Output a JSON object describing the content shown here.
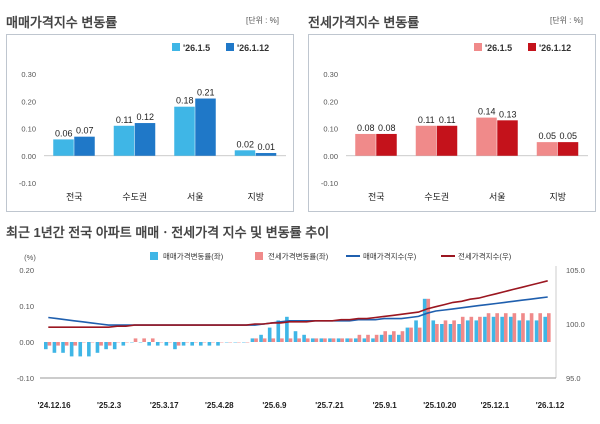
{
  "sale_panel": {
    "title": "매매가격지수 변동률",
    "unit": "[단위 : %]"
  },
  "jeonse_panel": {
    "title": "전세가격지수 변동률",
    "unit": "[단위 : %]"
  },
  "trend_title": "최근 1년간 전국 아파트 매매ㆍ전세가격 지수 및 변동률 추이",
  "colors": {
    "sale_week1": "#3fb6e6",
    "sale_week2": "#1f78c8",
    "jeonse_week1": "#f08a8a",
    "jeonse_week2": "#c4121b",
    "sale_index_line": "#1f5fae",
    "jeonse_index_line": "#9b1620"
  },
  "chart_data": [
    {
      "type": "bar",
      "categories": [
        "전국",
        "수도권",
        "서울",
        "지방"
      ],
      "series": [
        {
          "name": "'26.1.5",
          "values": [
            0.06,
            0.11,
            0.18,
            0.02
          ]
        },
        {
          "name": "'26.1.12",
          "values": [
            0.07,
            0.12,
            0.21,
            0.01
          ]
        }
      ],
      "ylim": [
        -0.1,
        0.3
      ],
      "yticks": [
        "0.30",
        "0.20",
        "0.10",
        "0.00",
        "-0.10"
      ],
      "legend": "top-right",
      "grid": false
    },
    {
      "type": "bar",
      "categories": [
        "전국",
        "수도권",
        "서울",
        "지방"
      ],
      "series": [
        {
          "name": "'26.1.5",
          "values": [
            0.08,
            0.11,
            0.14,
            0.05
          ]
        },
        {
          "name": "'26.1.12",
          "values": [
            0.08,
            0.11,
            0.13,
            0.05
          ]
        }
      ],
      "ylim": [
        -0.1,
        0.3
      ],
      "yticks": [
        "0.30",
        "0.20",
        "0.10",
        "0.00",
        "-0.10"
      ],
      "legend": "top-right",
      "grid": false
    },
    {
      "type": "bar",
      "x_ticks": [
        "'24.12.16",
        "'25.2.3",
        "'25.3.17",
        "'25.4.28",
        "'25.6.9",
        "'25.7.21",
        "'25.9.1",
        "'25.10.20",
        "'25.12.1",
        "'26.1.12"
      ],
      "left_axis_label": "(%)",
      "ylim": [
        -0.1,
        0.2
      ],
      "yticks": [
        "0.20",
        "0.10",
        "0.00",
        "-0.10"
      ],
      "y2lim": [
        95.0,
        105.0
      ],
      "y2ticks": [
        "105.0",
        "100.0",
        "95.0"
      ],
      "legend": "top-center",
      "series": [
        {
          "name": "매매가격변동률(좌)",
          "kind": "bar",
          "values": [
            -0.02,
            -0.03,
            -0.03,
            -0.04,
            -0.04,
            -0.04,
            -0.03,
            -0.02,
            -0.02,
            -0.01,
            0.0,
            0.0,
            -0.01,
            -0.01,
            -0.01,
            -0.02,
            -0.01,
            -0.01,
            -0.01,
            -0.01,
            -0.01,
            0.0,
            0.0,
            0.0,
            0.01,
            0.02,
            0.04,
            0.06,
            0.07,
            0.03,
            0.02,
            0.01,
            0.01,
            0.01,
            0.01,
            0.01,
            0.01,
            0.01,
            0.01,
            0.02,
            0.02,
            0.02,
            0.04,
            0.06,
            0.12,
            0.06,
            0.05,
            0.05,
            0.05,
            0.06,
            0.06,
            0.07,
            0.07,
            0.07,
            0.07,
            0.06,
            0.06,
            0.06,
            0.07
          ]
        },
        {
          "name": "전세가격변동률(좌)",
          "kind": "bar",
          "values": [
            -0.01,
            -0.01,
            -0.01,
            -0.01,
            0.0,
            0.0,
            -0.01,
            -0.01,
            0.0,
            0.0,
            0.01,
            0.01,
            0.01,
            0.0,
            0.0,
            -0.01,
            0.0,
            0.0,
            0.0,
            0.0,
            0.0,
            0.0,
            0.0,
            0.0,
            0.01,
            0.01,
            0.01,
            0.01,
            0.01,
            0.01,
            0.01,
            0.01,
            0.01,
            0.01,
            0.01,
            0.01,
            0.02,
            0.02,
            0.02,
            0.03,
            0.03,
            0.03,
            0.04,
            0.04,
            0.12,
            0.05,
            0.06,
            0.06,
            0.07,
            0.07,
            0.07,
            0.08,
            0.08,
            0.08,
            0.08,
            0.08,
            0.08,
            0.08,
            0.08
          ]
        },
        {
          "name": "매매가격지수(우)",
          "kind": "line",
          "values": [
            100.6,
            100.5,
            100.4,
            100.3,
            100.2,
            100.1,
            100.0,
            99.9,
            99.9,
            99.9,
            99.9,
            99.9,
            99.9,
            99.9,
            99.9,
            99.9,
            99.9,
            99.9,
            99.9,
            99.9,
            99.9,
            99.9,
            99.9,
            99.9,
            99.9,
            100.0,
            100.1,
            100.2,
            100.3,
            100.3,
            100.3,
            100.3,
            100.3,
            100.3,
            100.3,
            100.3,
            100.4,
            100.4,
            100.4,
            100.5,
            100.5,
            100.5,
            100.6,
            100.7,
            101.0,
            101.2,
            101.3,
            101.4,
            101.5,
            101.6,
            101.7,
            101.8,
            101.9,
            102.0,
            102.1,
            102.2,
            102.3,
            102.4,
            102.5
          ]
        },
        {
          "name": "전세가격지수(우)",
          "kind": "line",
          "values": [
            99.7,
            99.7,
            99.7,
            99.7,
            99.7,
            99.7,
            99.7,
            99.7,
            99.8,
            99.8,
            99.9,
            99.9,
            99.9,
            99.9,
            99.9,
            99.9,
            99.9,
            99.9,
            99.9,
            99.9,
            99.9,
            99.9,
            99.9,
            99.9,
            100.0,
            100.0,
            100.1,
            100.1,
            100.2,
            100.2,
            100.2,
            100.3,
            100.3,
            100.3,
            100.4,
            100.4,
            100.5,
            100.5,
            100.6,
            100.7,
            100.8,
            100.9,
            101.0,
            101.1,
            101.4,
            101.6,
            101.8,
            102.0,
            102.1,
            102.3,
            102.4,
            102.6,
            102.8,
            103.0,
            103.2,
            103.4,
            103.6,
            103.8,
            104.0
          ]
        }
      ]
    }
  ]
}
